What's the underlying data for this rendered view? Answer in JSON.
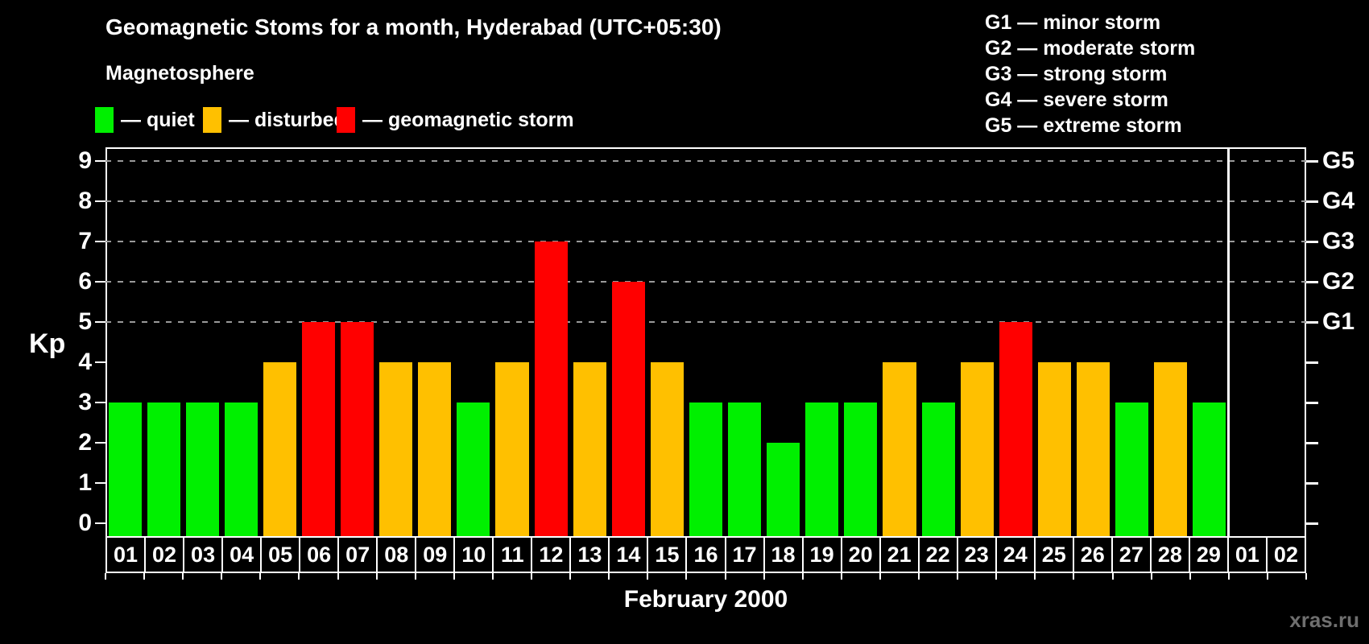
{
  "title": "Geomagnetic Stoms for a month, Hyderabad (UTC+05:30)",
  "legend": {
    "heading": "Magnetosphere",
    "items": [
      {
        "status": "quiet",
        "label": "— quiet",
        "color": "#00f000"
      },
      {
        "status": "disturbed",
        "label": "— disturbed",
        "color": "#ffc000"
      },
      {
        "status": "storm",
        "label": "— geomagnetic storm",
        "color": "#ff0000"
      }
    ]
  },
  "g_scale_legend": [
    "G1 — minor storm",
    "G2 — moderate storm",
    "G3 — strong storm",
    "G4 — severe storm",
    "G5 — extreme storm"
  ],
  "watermark": "xras.ru",
  "colors": {
    "quiet": "#00f000",
    "disturbed": "#ffc000",
    "storm": "#ff0000",
    "grid": "#9a9a9a",
    "frame": "#ffffff",
    "watermark": "#6f6f6f",
    "background": "#000000"
  },
  "chart_data": {
    "type": "bar",
    "title": "Geomagnetic Stoms for a month, Hyderabad (UTC+05:30)",
    "xlabel": "February 2000",
    "ylabel": "Kp",
    "ylim": [
      0,
      9
    ],
    "grid": "dashed horizontal at Kp 5-9 only",
    "yticks": [
      "0",
      "1",
      "2",
      "3",
      "4",
      "5",
      "6",
      "7",
      "8",
      "9"
    ],
    "right_axis": [
      {
        "label": "G1",
        "kp": 5
      },
      {
        "label": "G2",
        "kp": 6
      },
      {
        "label": "G3",
        "kp": 7
      },
      {
        "label": "G4",
        "kp": 8
      },
      {
        "label": "G5",
        "kp": 9
      }
    ],
    "gridlines_at": [
      5,
      6,
      7,
      8,
      9
    ],
    "categories": [
      "01",
      "02",
      "03",
      "04",
      "05",
      "06",
      "07",
      "08",
      "09",
      "10",
      "11",
      "12",
      "13",
      "14",
      "15",
      "16",
      "17",
      "18",
      "19",
      "20",
      "21",
      "22",
      "23",
      "24",
      "25",
      "26",
      "27",
      "28",
      "29",
      "01",
      "02"
    ],
    "month_boundary_after_index": 28,
    "series": [
      {
        "name": "Kp index",
        "values": [
          3,
          3,
          3,
          3,
          4,
          5,
          5,
          4,
          4,
          3,
          4,
          7,
          4,
          6,
          4,
          3,
          3,
          2,
          3,
          3,
          4,
          3,
          4,
          5,
          4,
          4,
          3,
          4,
          3,
          null,
          null
        ],
        "statuses": [
          "quiet",
          "quiet",
          "quiet",
          "quiet",
          "disturbed",
          "storm",
          "storm",
          "disturbed",
          "disturbed",
          "quiet",
          "disturbed",
          "storm",
          "disturbed",
          "storm",
          "disturbed",
          "quiet",
          "quiet",
          "quiet",
          "quiet",
          "quiet",
          "disturbed",
          "quiet",
          "disturbed",
          "storm",
          "disturbed",
          "disturbed",
          "quiet",
          "disturbed",
          "quiet",
          null,
          null
        ]
      }
    ]
  }
}
